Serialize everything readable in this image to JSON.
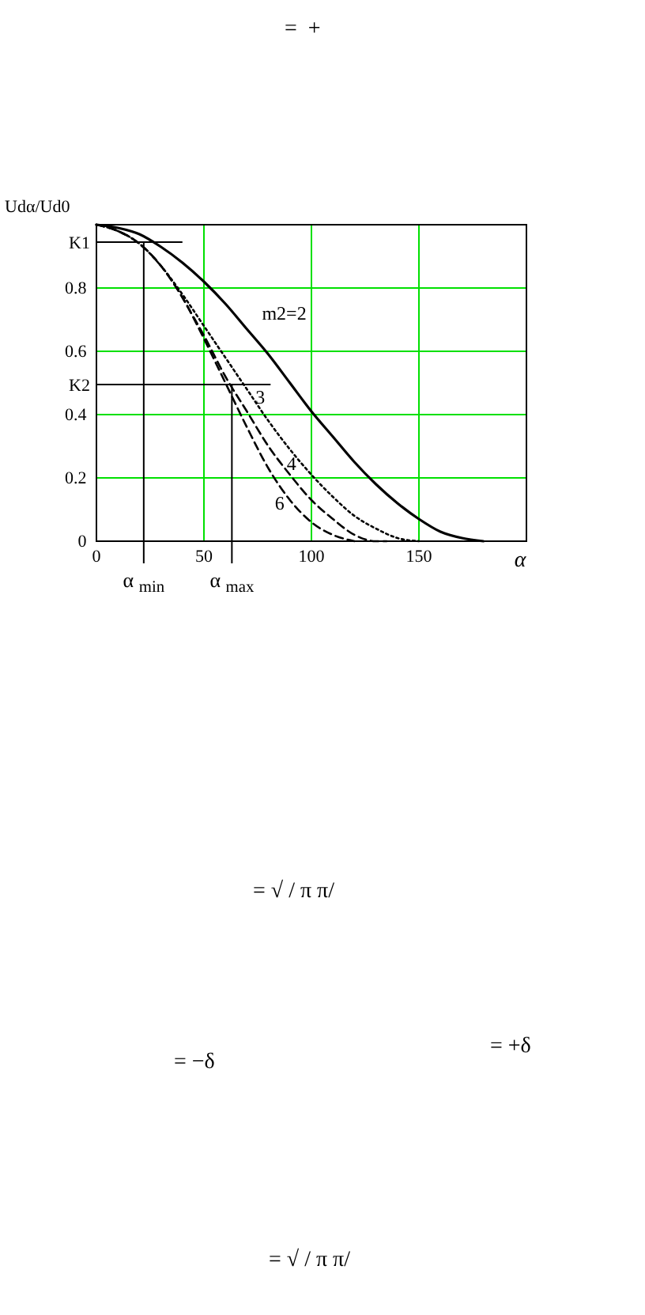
{
  "chart_data": {
    "type": "line",
    "ylabel": "Udα/Ud0",
    "xlabel": "α",
    "xlim": [
      0,
      200
    ],
    "ylim": [
      0,
      1
    ],
    "xticks": [
      0,
      50,
      100,
      150
    ],
    "yticks": [
      0,
      0.2,
      0.4,
      0.6,
      0.8
    ],
    "grid": true,
    "marker": "none",
    "series": [
      {
        "name": "m2=2",
        "color": "#000000",
        "line_style": "solid",
        "x": [
          0,
          10,
          20,
          30,
          40,
          50,
          60,
          70,
          80,
          90,
          100,
          110,
          120,
          130,
          140,
          150,
          160,
          170,
          180
        ],
        "values": [
          1,
          0.99,
          0.97,
          0.93,
          0.88,
          0.82,
          0.75,
          0.67,
          0.59,
          0.5,
          0.41,
          0.33,
          0.25,
          0.18,
          0.12,
          0.07,
          0.03,
          0.01,
          0
        ]
      },
      {
        "name": "3",
        "color": "#000000",
        "line_style": "dotted",
        "x": [
          0,
          10,
          20,
          30,
          40,
          50,
          60,
          70,
          80,
          90,
          100,
          110,
          120,
          130,
          140,
          150
        ],
        "values": [
          1,
          0.98,
          0.94,
          0.87,
          0.78,
          0.68,
          0.58,
          0.48,
          0.38,
          0.29,
          0.21,
          0.14,
          0.08,
          0.04,
          0.01,
          0
        ]
      },
      {
        "name": "4",
        "color": "#000000",
        "line_style": "dashed",
        "x": [
          0,
          10,
          20,
          30,
          40,
          45,
          50,
          60,
          70,
          80,
          90,
          100,
          110,
          120,
          130,
          135
        ],
        "values": [
          1,
          0.98,
          0.94,
          0.87,
          0.77,
          0.71,
          0.65,
          0.52,
          0.41,
          0.3,
          0.21,
          0.13,
          0.07,
          0.02,
          0,
          0
        ]
      },
      {
        "name": "6",
        "color": "#000000",
        "line_style": "dashed",
        "x": [
          0,
          10,
          20,
          30,
          40,
          50,
          60,
          70,
          80,
          90,
          100,
          110,
          120
        ],
        "values": [
          1,
          0.98,
          0.94,
          0.87,
          0.77,
          0.64,
          0.5,
          0.36,
          0.23,
          0.13,
          0.06,
          0.02,
          0
        ]
      }
    ],
    "ref_lines": [
      {
        "axis": "y",
        "value": 0.945,
        "label": "K1",
        "color": "#000000"
      },
      {
        "axis": "y",
        "value": 0.495,
        "label": "K2",
        "color": "#000000"
      },
      {
        "axis": "x",
        "value": 22,
        "label": "α $_{min}$",
        "color": "#000000"
      },
      {
        "axis": "x",
        "value": 63,
        "label": "α $_{max}$",
        "color": "#000000"
      }
    ],
    "annotations": [
      "=  +",
      "= √ / π π/",
      "= −δ",
      "= +δ",
      "= √ / π π/"
    ]
  }
}
